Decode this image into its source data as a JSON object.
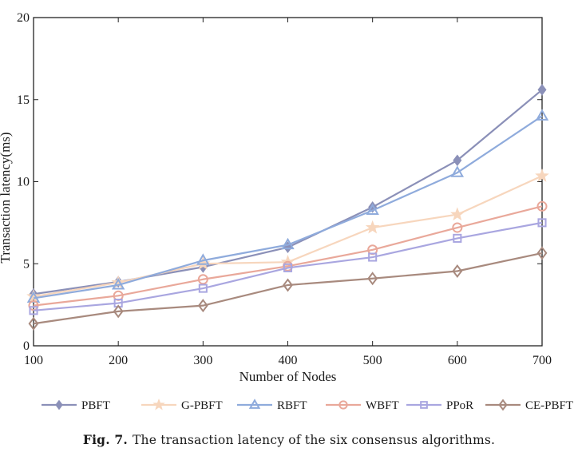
{
  "chart_data": {
    "type": "line",
    "title": "",
    "xlabel": "Number of Nodes",
    "ylabel": "Transaction latency(ms)",
    "x": [
      100,
      200,
      300,
      400,
      500,
      600,
      700
    ],
    "xticks": [
      "100",
      "200",
      "300",
      "400",
      "500",
      "600",
      "700"
    ],
    "yticks": [
      "0",
      "5",
      "10",
      "15",
      "20"
    ],
    "ytick_values": [
      0,
      5,
      10,
      15,
      20
    ],
    "xlim": [
      100,
      700
    ],
    "ylim": [
      0,
      20
    ],
    "grid": false,
    "legend_position": "bottom",
    "series": [
      {
        "name": "PBFT",
        "marker": "filled-diamond",
        "color": "#8b90b8",
        "values": [
          3.15,
          3.9,
          4.8,
          6.0,
          8.45,
          11.3,
          15.6
        ]
      },
      {
        "name": "G-PBFT",
        "marker": "star",
        "color": "#f7d6bd",
        "values": [
          3.0,
          3.85,
          5.0,
          5.1,
          7.2,
          8.0,
          10.35
        ]
      },
      {
        "name": "RBFT",
        "marker": "triangle",
        "color": "#8fabdc",
        "values": [
          2.9,
          3.7,
          5.2,
          6.15,
          8.25,
          10.55,
          14.0
        ]
      },
      {
        "name": "WBFT",
        "marker": "circle",
        "color": "#e9a89a",
        "values": [
          2.45,
          3.05,
          4.05,
          4.85,
          5.85,
          7.2,
          8.5
        ]
      },
      {
        "name": "PPoR",
        "marker": "square",
        "color": "#a9a6e0",
        "values": [
          2.15,
          2.6,
          3.5,
          4.75,
          5.4,
          6.55,
          7.5
        ]
      },
      {
        "name": "CE-PBFT",
        "marker": "diamond",
        "color": "#a88a7e",
        "values": [
          1.35,
          2.1,
          2.45,
          3.7,
          4.1,
          4.55,
          5.65
        ]
      }
    ]
  },
  "caption": {
    "label": "Fig. 7.",
    "text": "The transaction latency of the six consensus algorithms."
  }
}
